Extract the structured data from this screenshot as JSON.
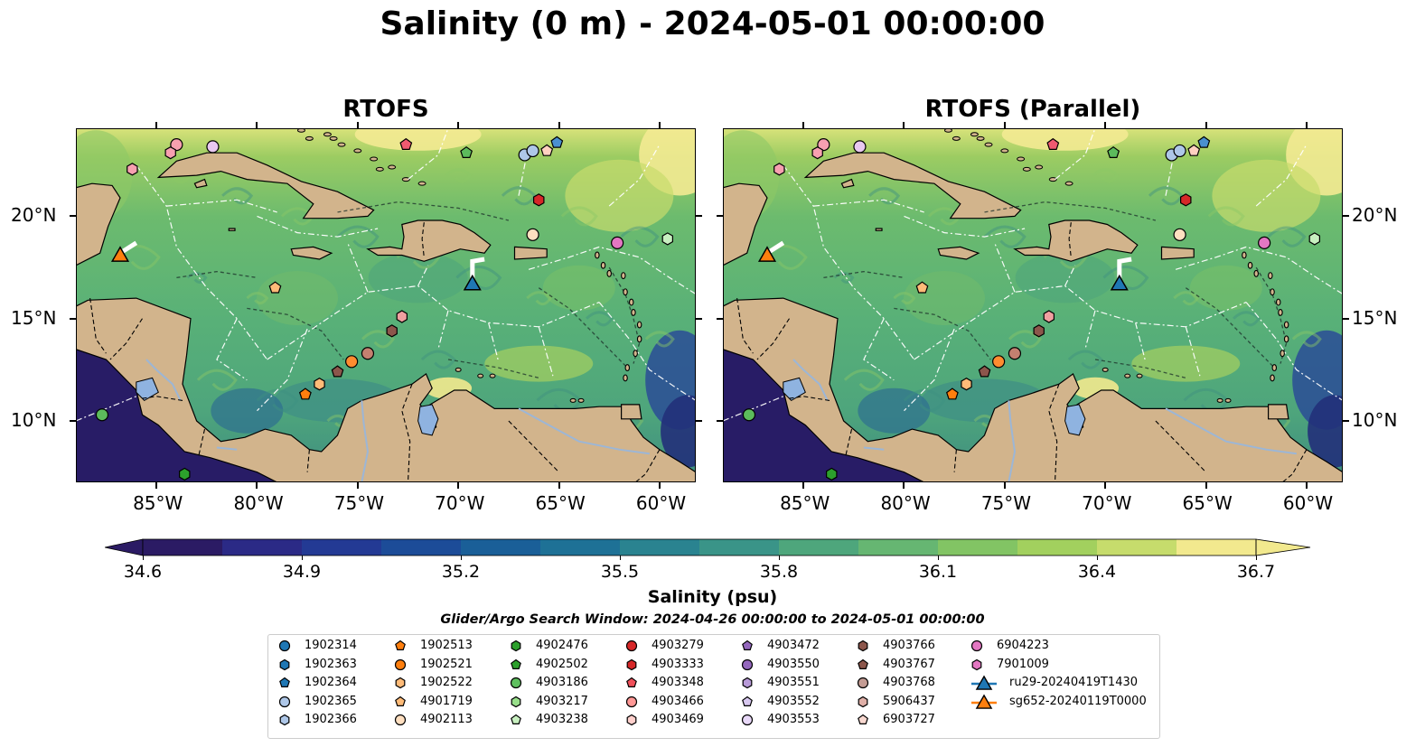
{
  "title": "Salinity (0 m) - 2024-05-01 00:00:00",
  "panels": [
    {
      "title": "RTOFS"
    },
    {
      "title": "RTOFS (Parallel)"
    }
  ],
  "lon_ticks": [
    "85°W",
    "80°W",
    "75°W",
    "70°W",
    "65°W",
    "60°W"
  ],
  "lat_ticks": [
    "20°N",
    "15°N",
    "10°N"
  ],
  "colorbar": {
    "label": "Salinity (psu)",
    "min": 34.6,
    "max": 36.7,
    "ticks": [
      "34.6",
      "34.9",
      "35.2",
      "35.5",
      "35.8",
      "36.1",
      "36.4",
      "36.7"
    ],
    "colors": [
      "#2b1b64",
      "#2b2a86",
      "#233a94",
      "#1c4c98",
      "#1a5f98",
      "#1e7196",
      "#2a8390",
      "#3a9488",
      "#4ea67c",
      "#66b672",
      "#82c464",
      "#a2d05e",
      "#c6dc6c",
      "#f2e98e"
    ]
  },
  "search_window": "Glider/Argo Search Window: 2024-04-26 00:00:00 to 2024-05-01 00:00:00",
  "legend": {
    "columns": [
      [
        {
          "label": "1902314",
          "marker": "circle",
          "color": "#1f77b4"
        },
        {
          "label": "1902363",
          "marker": "hexagon",
          "color": "#1f77b4"
        },
        {
          "label": "1902364",
          "marker": "pentagon",
          "color": "#1f77b4"
        },
        {
          "label": "1902365",
          "marker": "circle",
          "color": "#aec7e8"
        },
        {
          "label": "1902366",
          "marker": "hexagon",
          "color": "#aec7e8"
        }
      ],
      [
        {
          "label": "1902513",
          "marker": "pentagon",
          "color": "#ff7f0e"
        },
        {
          "label": "1902521",
          "marker": "circle",
          "color": "#ff7f0e"
        },
        {
          "label": "1902522",
          "marker": "hexagon",
          "color": "#ffbb78"
        },
        {
          "label": "4901719",
          "marker": "pentagon",
          "color": "#ffbb78"
        },
        {
          "label": "4902113",
          "marker": "circle",
          "color": "#ffdfc0"
        }
      ],
      [
        {
          "label": "4902476",
          "marker": "hexagon",
          "color": "#2ca02c"
        },
        {
          "label": "4902502",
          "marker": "pentagon",
          "color": "#2ca02c"
        },
        {
          "label": "4903186",
          "marker": "circle",
          "color": "#5fc05f"
        },
        {
          "label": "4903217",
          "marker": "hexagon",
          "color": "#98df8a"
        },
        {
          "label": "4903238",
          "marker": "pentagon",
          "color": "#c8f0c0"
        }
      ],
      [
        {
          "label": "4903279",
          "marker": "circle",
          "color": "#d62728"
        },
        {
          "label": "4903333",
          "marker": "hexagon",
          "color": "#d62728"
        },
        {
          "label": "4903348",
          "marker": "pentagon",
          "color": "#f0505a"
        },
        {
          "label": "4903466",
          "marker": "circle",
          "color": "#ff9896"
        },
        {
          "label": "4903469",
          "marker": "hexagon",
          "color": "#ffd0cc"
        }
      ],
      [
        {
          "label": "4903472",
          "marker": "pentagon",
          "color": "#9467bd"
        },
        {
          "label": "4903550",
          "marker": "circle",
          "color": "#9467bd"
        },
        {
          "label": "4903551",
          "marker": "hexagon",
          "color": "#b89ad8"
        },
        {
          "label": "4903552",
          "marker": "pentagon",
          "color": "#d8c8f0"
        },
        {
          "label": "4903553",
          "marker": "circle",
          "color": "#e8d8f8"
        }
      ],
      [
        {
          "label": "4903766",
          "marker": "hexagon",
          "color": "#8c564b"
        },
        {
          "label": "4903767",
          "marker": "pentagon",
          "color": "#8c564b"
        },
        {
          "label": "4903768",
          "marker": "circle",
          "color": "#c49c94"
        },
        {
          "label": "5906437",
          "marker": "hexagon",
          "color": "#e0b0a8"
        },
        {
          "label": "6903727",
          "marker": "pentagon",
          "color": "#f8d8d0"
        }
      ],
      [
        {
          "label": "6904223",
          "marker": "circle",
          "color": "#e377c2"
        },
        {
          "label": "7901009",
          "marker": "hexagon",
          "color": "#e377c2"
        },
        {
          "label": "ru29-20240419T1430",
          "marker": "triangle-line",
          "color": "#1f77b4"
        },
        {
          "label": "sg652-20240119T0000",
          "marker": "triangle-line",
          "color": "#ff7f0e"
        }
      ]
    ]
  },
  "map_markers": [
    {
      "lon": -84.0,
      "lat": 23.5,
      "marker": "circle",
      "color": "#f7a0b0"
    },
    {
      "lon": -84.3,
      "lat": 23.1,
      "marker": "hexagon",
      "color": "#f7a0b0"
    },
    {
      "lon": -86.2,
      "lat": 22.3,
      "marker": "hexagon",
      "color": "#f7a0b0"
    },
    {
      "lon": -82.2,
      "lat": 23.4,
      "marker": "circle",
      "color": "#e8c8f0"
    },
    {
      "lon": -72.6,
      "lat": 23.5,
      "marker": "pentagon",
      "color": "#f05a70"
    },
    {
      "lon": -69.6,
      "lat": 23.1,
      "marker": "pentagon",
      "color": "#5cbb5c"
    },
    {
      "lon": -66.7,
      "lat": 23.0,
      "marker": "circle",
      "color": "#aec7e8"
    },
    {
      "lon": -66.3,
      "lat": 23.2,
      "marker": "circle",
      "color": "#aec7e8"
    },
    {
      "lon": -65.6,
      "lat": 23.2,
      "marker": "pentagon",
      "color": "#ffd0c0"
    },
    {
      "lon": -65.1,
      "lat": 23.6,
      "marker": "pentagon",
      "color": "#4a90d0"
    },
    {
      "lon": -66.0,
      "lat": 20.8,
      "marker": "hexagon",
      "color": "#d62728"
    },
    {
      "lon": -66.3,
      "lat": 19.1,
      "marker": "circle",
      "color": "#ffe0c0"
    },
    {
      "lon": -62.1,
      "lat": 18.7,
      "marker": "circle",
      "color": "#e377c2"
    },
    {
      "lon": -59.6,
      "lat": 18.9,
      "marker": "hexagon",
      "color": "#c8f0c0"
    },
    {
      "lon": -79.1,
      "lat": 16.5,
      "marker": "pentagon",
      "color": "#ffbb78"
    },
    {
      "lon": -72.8,
      "lat": 15.1,
      "marker": "hexagon",
      "color": "#f0a0a0"
    },
    {
      "lon": -73.3,
      "lat": 14.4,
      "marker": "hexagon",
      "color": "#8c564b"
    },
    {
      "lon": -74.5,
      "lat": 13.3,
      "marker": "circle",
      "color": "#c48070"
    },
    {
      "lon": -75.3,
      "lat": 12.9,
      "marker": "circle",
      "color": "#ff8c30"
    },
    {
      "lon": -76.0,
      "lat": 12.4,
      "marker": "pentagon",
      "color": "#8c564b"
    },
    {
      "lon": -76.9,
      "lat": 11.8,
      "marker": "hexagon",
      "color": "#ffbb78"
    },
    {
      "lon": -77.6,
      "lat": 11.3,
      "marker": "pentagon",
      "color": "#ff7f0e"
    },
    {
      "lon": -87.7,
      "lat": 10.3,
      "marker": "circle",
      "color": "#5cbb5c"
    },
    {
      "lon": -83.6,
      "lat": 7.4,
      "marker": "hexagon",
      "color": "#2ca02c"
    },
    {
      "lon": -86.8,
      "lat": 18.1,
      "marker": "triangle",
      "color": "#ff7f0e"
    },
    {
      "lon": -69.3,
      "lat": 16.7,
      "marker": "triangle",
      "color": "#1f77b4"
    }
  ]
}
